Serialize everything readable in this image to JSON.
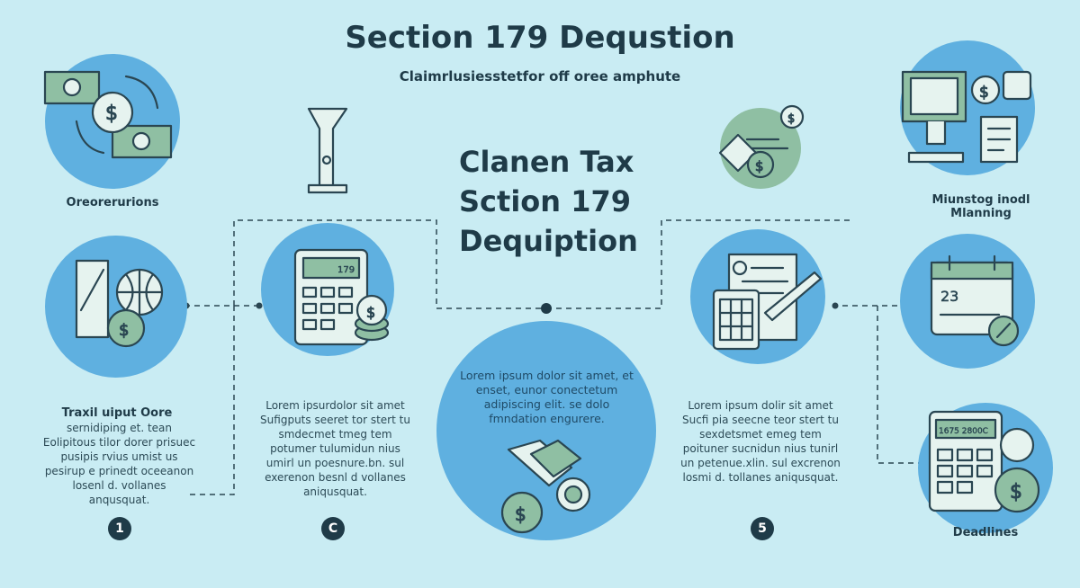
{
  "header": {
    "title": "Section 179 Dequstion",
    "subtitle": "Claimrlusiesstetfor off oree amphute"
  },
  "center": {
    "title_lines": [
      "Clanen Tax",
      "Sction 179",
      "Dequiption"
    ],
    "body": "Lorem ipsum dolor sit amet, et enset, eunor conectetum adipiscing elit. se dolo fmndation engurere."
  },
  "left": {
    "top_label": "Oreorerurions",
    "heading": "Traxil uiput Oore",
    "body": "sernidiping et. tean Eolipitous tilor dorer prisuec pusipis rvius umist us pesirup e prinedt oceeanon losenl d. vollanes anqusquat."
  },
  "middle_left": {
    "body": "Lorem ipsurdolor sit amet Sufigputs seeret tor stert tu smdecmet tmeg tem potumer tulumidun nius umirl un poesnure.bn. sul exerenon besnl d vollanes aniqusquat."
  },
  "middle_right": {
    "body": "Lorem ipsum dolir sit amet Sucfi pia seecne teor stert tu sexdetsmet emeg tem poituner sucnidun nius tunirl un petenue.xlin. sul excrenon losmi d. tollanes aniqusquat."
  },
  "right": {
    "top_label": "Miunstog inodl Mlanning",
    "bottom_label": "Deadlines",
    "calculator_display": "1675 2800C",
    "calendar_number": "23"
  },
  "calculator_display": "179",
  "steps": [
    "1",
    "C",
    "5"
  ],
  "colors": {
    "background": "#c9ecf3",
    "circle": "#5fb0e0",
    "text": "#1f3b48",
    "accent_green": "#8fbfa3"
  }
}
